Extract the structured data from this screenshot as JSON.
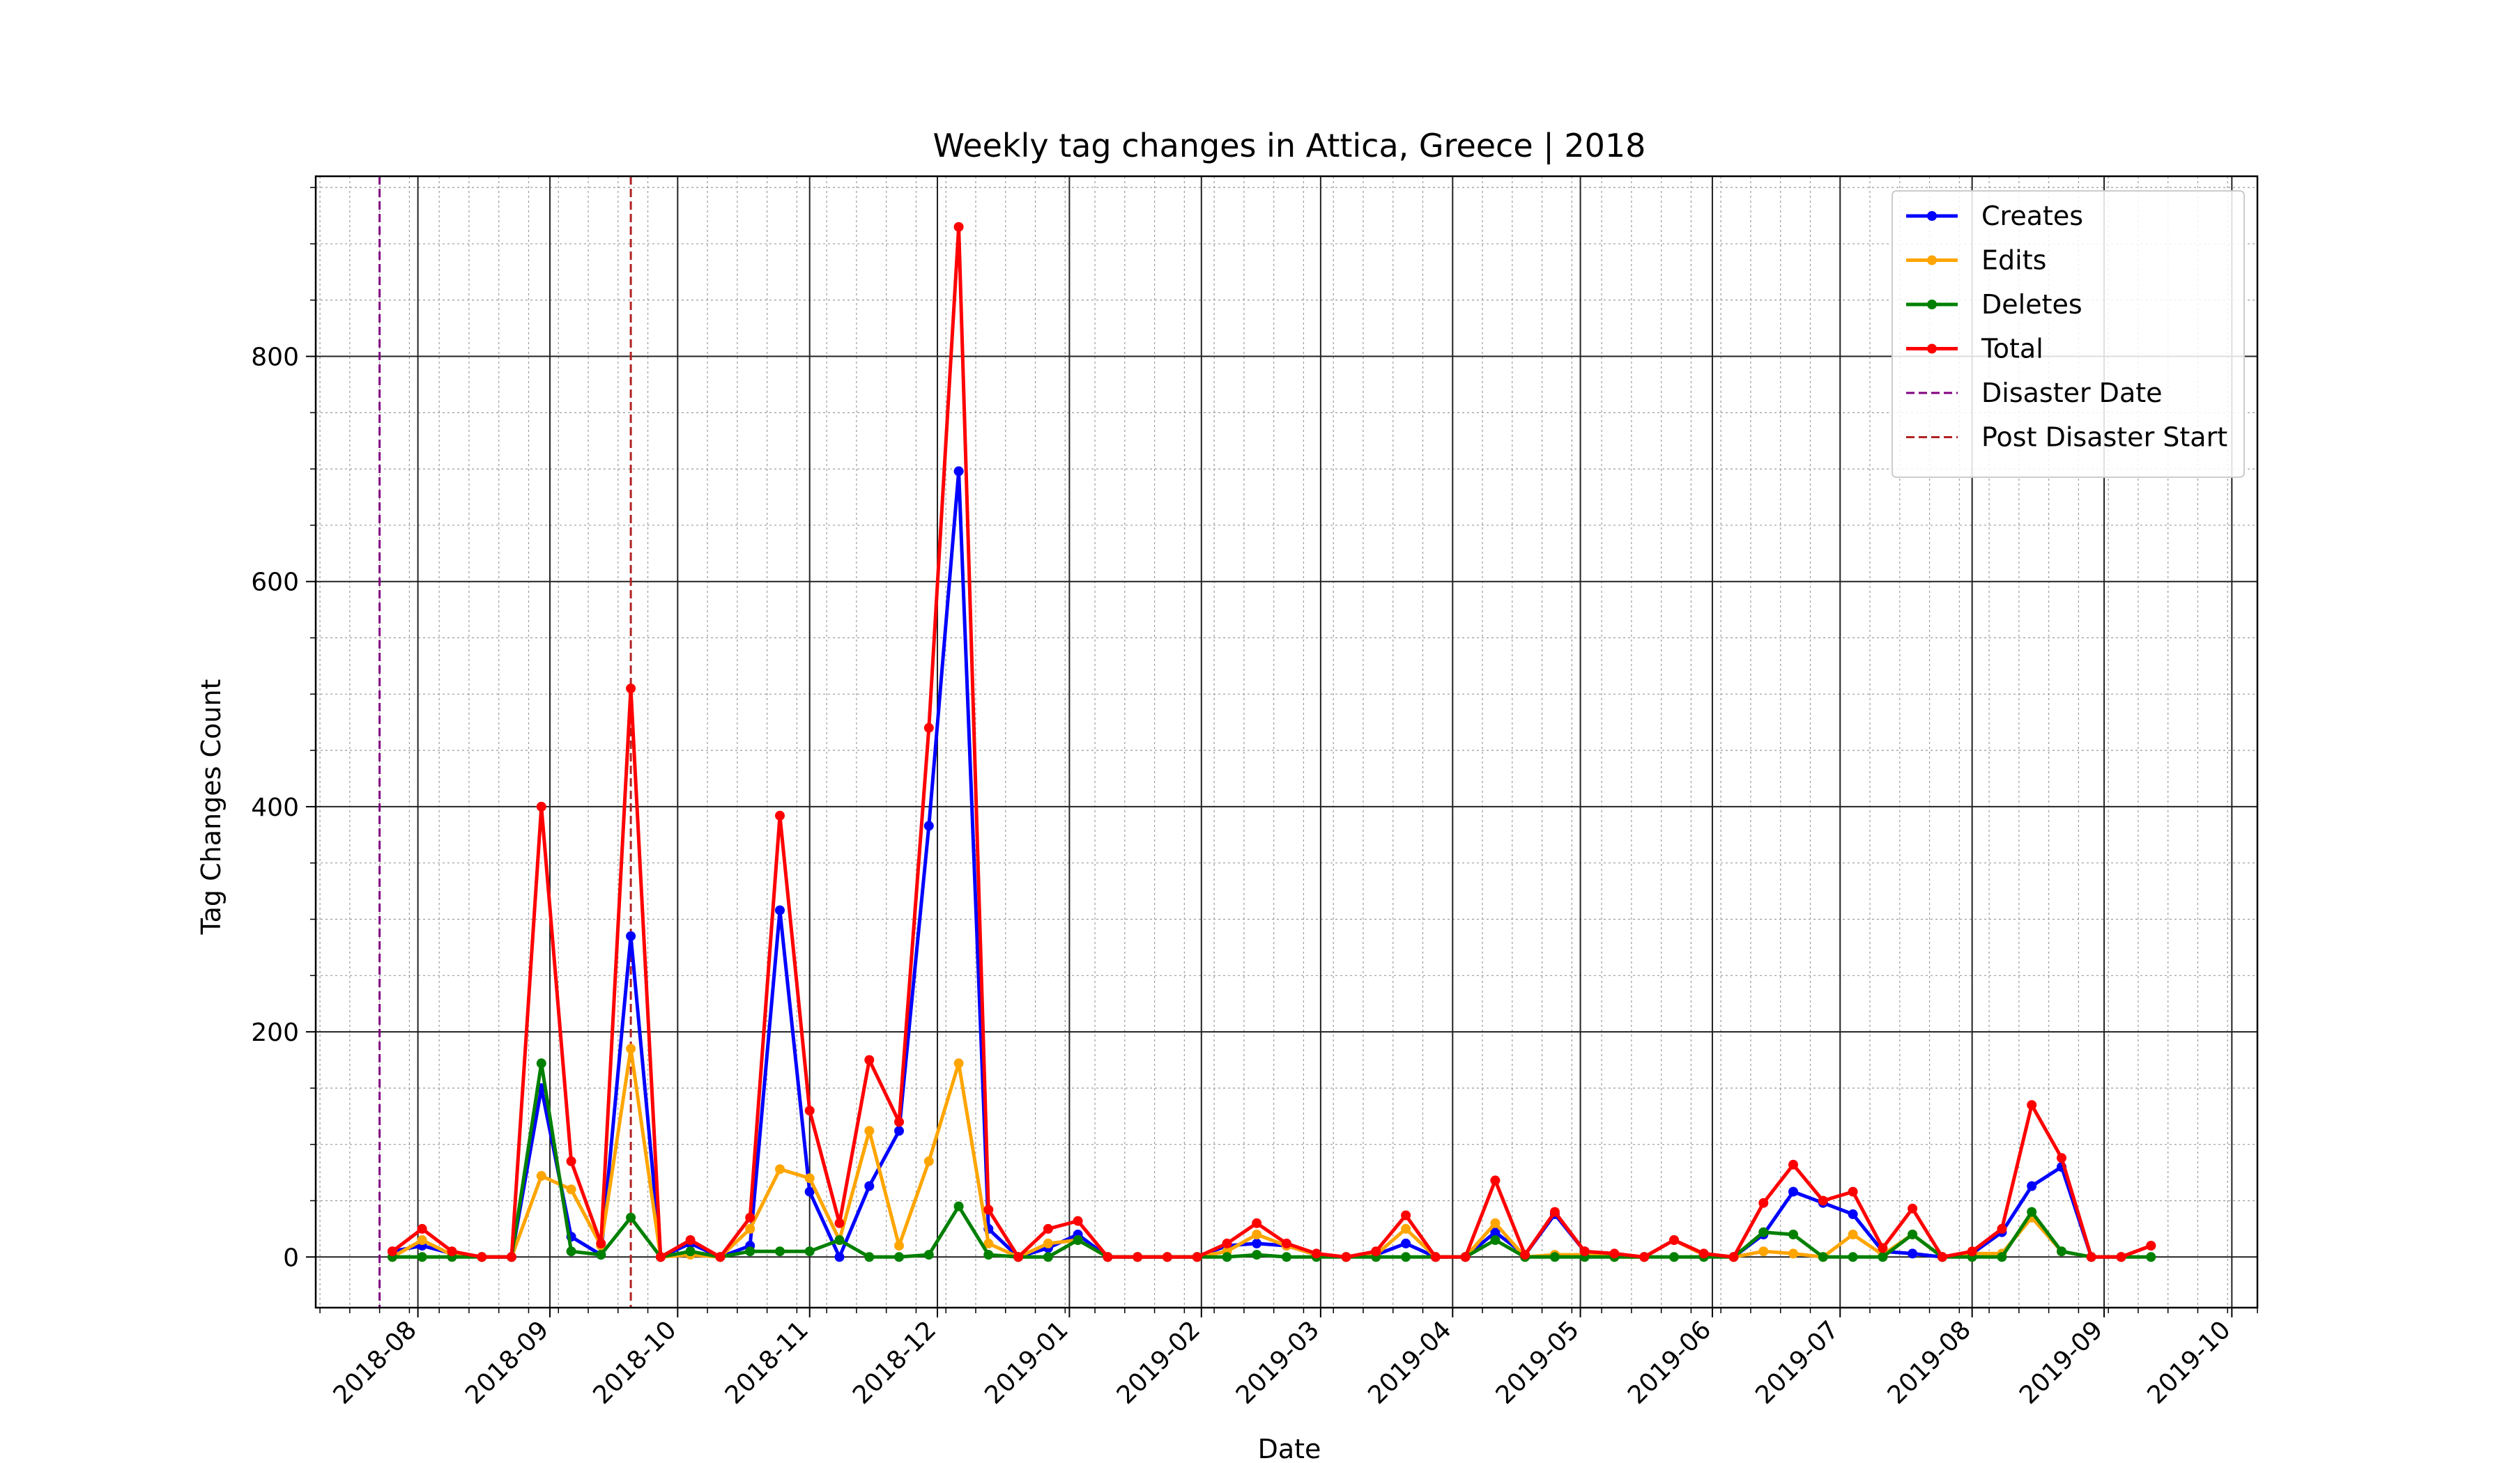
{
  "chart_data": {
    "type": "line",
    "title": "Weekly tag changes in Attica, Greece | 2018",
    "xlabel": "Date",
    "ylabel": "Tag Changes Count",
    "x_axis": "date",
    "xlim": [
      "2018-07-08",
      "2019-10-07"
    ],
    "ylim": [
      -45,
      960
    ],
    "y_major_ticks": [
      0,
      200,
      400,
      600,
      800
    ],
    "y_minor_step": 50,
    "x_tick_labels": [
      "2018-08",
      "2018-09",
      "2018-10",
      "2018-11",
      "2018-12",
      "2019-01",
      "2019-02",
      "2019-03",
      "2019-04",
      "2019-05",
      "2019-06",
      "2019-07",
      "2019-08",
      "2019-09",
      "2019-10"
    ],
    "x_ticks": [
      "2018-08-01",
      "2018-09-01",
      "2018-10-01",
      "2018-11-01",
      "2018-12-01",
      "2019-01-01",
      "2019-02-01",
      "2019-03-01",
      "2019-04-01",
      "2019-05-01",
      "2019-06-01",
      "2019-07-01",
      "2019-08-01",
      "2019-09-01",
      "2019-10-01"
    ],
    "grid": true,
    "minor_grid": true,
    "legend_position": "top-right",
    "x_start": "2018-07-26",
    "x_step_days": 7,
    "series": [
      {
        "name": "Creates",
        "color": "#0000ff",
        "values": [
          5,
          10,
          3,
          0,
          0,
          150,
          18,
          2,
          285,
          0,
          12,
          0,
          10,
          308,
          58,
          0,
          63,
          112,
          383,
          698,
          25,
          0,
          8,
          20,
          0,
          0,
          0,
          0,
          10,
          12,
          10,
          2,
          0,
          2,
          12,
          0,
          0,
          22,
          2,
          38,
          5,
          2,
          0,
          15,
          2,
          0,
          20,
          58,
          48,
          38,
          5,
          3,
          0,
          3,
          22,
          63,
          80,
          0,
          0,
          10
        ]
      },
      {
        "name": "Edits",
        "color": "#ffa500",
        "values": [
          0,
          15,
          2,
          0,
          0,
          72,
          60,
          10,
          185,
          0,
          2,
          0,
          25,
          78,
          70,
          15,
          112,
          10,
          85,
          172,
          12,
          0,
          12,
          15,
          0,
          0,
          0,
          0,
          5,
          20,
          10,
          2,
          0,
          2,
          25,
          0,
          0,
          30,
          0,
          2,
          2,
          0,
          0,
          15,
          2,
          0,
          5,
          3,
          0,
          20,
          2,
          20,
          0,
          3,
          3,
          35,
          5,
          0,
          0,
          10
        ]
      },
      {
        "name": "Deletes",
        "color": "#008000",
        "values": [
          0,
          0,
          0,
          0,
          0,
          172,
          5,
          2,
          35,
          0,
          5,
          0,
          5,
          5,
          5,
          15,
          0,
          0,
          2,
          45,
          2,
          0,
          0,
          15,
          0,
          0,
          0,
          0,
          0,
          2,
          0,
          0,
          0,
          0,
          0,
          0,
          0,
          15,
          0,
          0,
          0,
          0,
          0,
          0,
          0,
          0,
          22,
          20,
          0,
          0,
          0,
          20,
          0,
          0,
          0,
          40,
          5,
          0,
          0,
          0
        ]
      },
      {
        "name": "Total",
        "color": "#ff0000",
        "values": [
          5,
          25,
          5,
          0,
          0,
          400,
          85,
          12,
          505,
          0,
          15,
          0,
          35,
          392,
          130,
          30,
          175,
          120,
          470,
          915,
          42,
          0,
          25,
          32,
          0,
          0,
          0,
          0,
          12,
          30,
          12,
          3,
          0,
          5,
          37,
          0,
          0,
          68,
          2,
          40,
          5,
          3,
          0,
          15,
          3,
          0,
          48,
          82,
          50,
          58,
          8,
          43,
          0,
          5,
          25,
          135,
          88,
          0,
          0,
          10
        ]
      }
    ],
    "vertical_lines": [
      {
        "name": "Disaster Date",
        "date": "2018-07-23",
        "color": "#800080"
      },
      {
        "name": "Post Disaster Start",
        "date": "2018-09-20",
        "color": "#b22222"
      }
    ]
  }
}
